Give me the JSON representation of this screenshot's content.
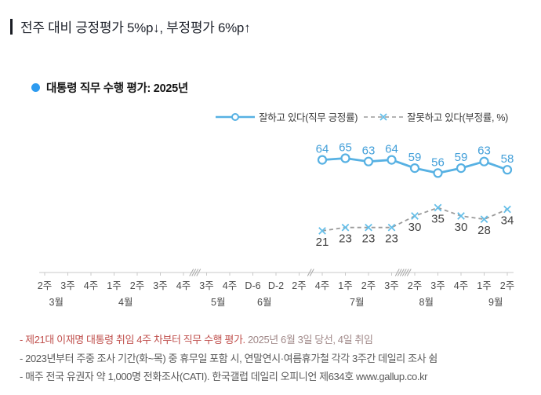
{
  "header": {
    "text": "전주 대비 긍정평가 5%p↓, 부정평가 6%p↑"
  },
  "chart": {
    "title": "대통령 직무 수행 평가: 2025년",
    "title_bullet_color": "#2d9bf0"
  },
  "chart_data": {
    "type": "line",
    "title": "대통령 직무 수행 평가: 2025년",
    "x_tick_labels": [
      "2주",
      "3주",
      "4주",
      "1주",
      "2주",
      "3주",
      "4주",
      "3주",
      "4주",
      "D-6",
      "D-2",
      "2주",
      "4주",
      "1주",
      "2주",
      "3주",
      "2주",
      "3주",
      "4주",
      "1주",
      "2주"
    ],
    "months": [
      {
        "label": "3월",
        "first_tick": 0,
        "last_tick": 2
      },
      {
        "label": "4월",
        "first_tick": 3,
        "last_tick": 6
      },
      {
        "label": "5월",
        "first_tick": 7,
        "last_tick": 8
      },
      {
        "label": "6월",
        "first_tick": 9,
        "last_tick": 12
      },
      {
        "label": "7월",
        "first_tick": 13,
        "last_tick": 15
      },
      {
        "label": "8월",
        "first_tick": 16,
        "last_tick": 18
      },
      {
        "label": "9월",
        "first_tick": 19,
        "last_tick": 20
      }
    ],
    "axis_breaks": [
      {
        "after_tick": 6,
        "slashes": 4
      },
      {
        "after_tick": 11,
        "slashes": 2
      },
      {
        "after_tick": 15,
        "slashes": 6
      }
    ],
    "data_categories": [
      "6월 4주",
      "7월 1주",
      "7월 2주",
      "7월 3주",
      "8월 2주",
      "8월 3주",
      "8월 4주",
      "9월 1주",
      "9월 2주"
    ],
    "series": [
      {
        "name": "잘하고 있다(직무 긍정률)",
        "line_style": "solid",
        "marker": "circle",
        "color": "#57b1e3",
        "label_color": "#429fd9",
        "start_tick": 12,
        "label_position": "above",
        "values": [
          64,
          65,
          63,
          64,
          59,
          56,
          59,
          63,
          58
        ]
      },
      {
        "name": "잘못하고 있다(부정률, %)",
        "line_style": "dashed",
        "marker": "x",
        "color": "#9b9b9b",
        "marker_color": "#66bfe9",
        "label_color": "#3f3f3f",
        "start_tick": 12,
        "label_position": "below",
        "values": [
          21,
          23,
          23,
          23,
          30,
          35,
          30,
          28,
          34
        ]
      }
    ],
    "y_axis": {
      "visible": false,
      "unit": "%",
      "range_hint": [
        0,
        100
      ]
    },
    "grid": false,
    "legend_position": "top-right"
  },
  "footnotes": {
    "line1_red": "- 제21대 이재명 대통령 취임 4주 차부터 직무 수행 평가.",
    "line1_rest": " 2025년 6월 3일 당선, 4일 취임",
    "line2": "- 2023년부터 주중 조사 기간(화~목) 중 휴무일 포함 시, 연말연시·여름휴가철 각각 3주간 데일리 조사 쉼",
    "line3": "- 매주 전국 유권자 약 1,000명 전화조사(CATI). 한국갤럽 데일리 오피니언 제634호 www.gallup.co.kr"
  }
}
